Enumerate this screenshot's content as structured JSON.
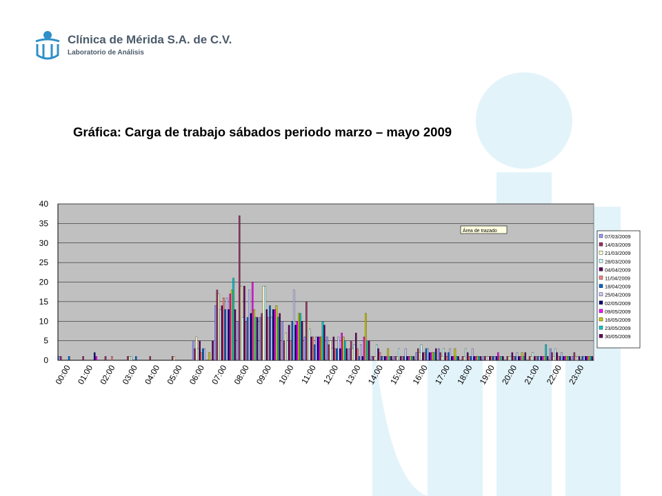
{
  "header": {
    "brand_name": "Clínica de Mérida S.A. de C.V.",
    "brand_subtitle": "Laboratorio de Análisis"
  },
  "slide": {
    "title": "Gráfica: Carga de trabajo sábados periodo marzo – mayo 2009"
  },
  "colors": {
    "brand": "#2f8fc8",
    "watermark": "#e3f3fa",
    "plot_area": "#c0c0c0"
  },
  "chart_data": {
    "type": "bar",
    "title": "",
    "xlabel": "",
    "ylabel": "",
    "ylim": [
      0,
      40
    ],
    "yticks": [
      0,
      5,
      10,
      15,
      20,
      25,
      30,
      35,
      40
    ],
    "grid": true,
    "legend_position": "right",
    "tooltip": "Área de trazado",
    "categories": [
      "00:00",
      "01:00",
      "02:00",
      "03:00",
      "04:00",
      "05:00",
      "06:00",
      "07:00",
      "08:00",
      "09:00",
      "10:00",
      "11:00",
      "12:00",
      "13:00",
      "14:00",
      "15:00",
      "16:00",
      "17:00",
      "18:00",
      "19:00",
      "20:00",
      "21:00",
      "22:00",
      "23:00"
    ],
    "series": [
      {
        "name": "07/03/2009",
        "color": "#9999ff",
        "values": [
          1,
          0,
          0,
          0,
          0,
          0,
          5,
          14,
          10,
          11,
          10,
          6,
          6,
          3,
          1,
          1,
          2,
          3,
          0,
          1,
          0,
          0,
          3,
          1
        ]
      },
      {
        "name": "14/03/2009",
        "color": "#993366",
        "values": [
          1,
          1,
          1,
          1,
          1,
          1,
          3,
          18,
          37,
          12,
          5,
          15,
          4,
          5,
          1,
          1,
          3,
          2,
          1,
          1,
          1,
          1,
          2,
          2
        ]
      },
      {
        "name": "21/03/2009",
        "color": "#ffffcc",
        "values": [
          0,
          0,
          0,
          1,
          0,
          1,
          6,
          17,
          19,
          19,
          7,
          10,
          5,
          3,
          1,
          1,
          2,
          1,
          1,
          1,
          1,
          1,
          1,
          1
        ]
      },
      {
        "name": "28/03/2009",
        "color": "#ccffff",
        "values": [
          0,
          0,
          0,
          1,
          0,
          0,
          3,
          13,
          11,
          19,
          5,
          8,
          3,
          4,
          4,
          3,
          4,
          3,
          3,
          1,
          1,
          2,
          3,
          1
        ]
      },
      {
        "name": "04/04/2009",
        "color": "#660066",
        "values": [
          0,
          0,
          0,
          0,
          0,
          0,
          5,
          14,
          19,
          13,
          9,
          6,
          6,
          7,
          3,
          1,
          2,
          2,
          2,
          1,
          2,
          1,
          2,
          1
        ]
      },
      {
        "name": "11/04/2009",
        "color": "#ff8080",
        "values": [
          0,
          0,
          1,
          0,
          0,
          0,
          2,
          16,
          10,
          11,
          5,
          6,
          3,
          3,
          2,
          1,
          2,
          1,
          1,
          1,
          1,
          1,
          1,
          0
        ]
      },
      {
        "name": "18/04/2009",
        "color": "#0066cc",
        "values": [
          1,
          0,
          0,
          1,
          0,
          0,
          3,
          13,
          11,
          14,
          10,
          4,
          3,
          1,
          1,
          1,
          3,
          2,
          1,
          1,
          1,
          1,
          1,
          1
        ]
      },
      {
        "name": "25/04/2009",
        "color": "#ccccff",
        "values": [
          0,
          0,
          0,
          0,
          0,
          0,
          3,
          16,
          18,
          11,
          18,
          6,
          6,
          4,
          1,
          3,
          3,
          3,
          3,
          1,
          2,
          1,
          2,
          1
        ]
      },
      {
        "name": "02/05/2009",
        "color": "#000080",
        "values": [
          0,
          2,
          0,
          0,
          0,
          0,
          0,
          13,
          12,
          13,
          9,
          6,
          3,
          1,
          1,
          1,
          2,
          1,
          1,
          1,
          1,
          1,
          1,
          1
        ]
      },
      {
        "name": "09/05/2009",
        "color": "#ff00ff",
        "values": [
          0,
          1,
          0,
          0,
          0,
          0,
          0,
          17,
          20,
          13,
          10,
          6,
          7,
          6,
          1,
          1,
          2,
          1,
          1,
          2,
          1,
          1,
          1,
          1
        ]
      },
      {
        "name": "16/05/2009",
        "color": "#cccc00",
        "values": [
          0,
          0,
          0,
          0,
          0,
          0,
          2,
          18,
          13,
          14,
          12,
          6,
          6,
          12,
          3,
          1,
          2,
          3,
          1,
          1,
          2,
          1,
          1,
          1
        ]
      },
      {
        "name": "23/05/2009",
        "color": "#00cccc",
        "values": [
          0,
          0,
          0,
          0,
          0,
          0,
          0,
          21,
          11,
          11,
          12,
          10,
          5,
          5,
          1,
          1,
          2,
          1,
          1,
          1,
          1,
          4,
          1,
          1
        ]
      },
      {
        "name": "30/05/2009",
        "color": "#660066",
        "values": [
          0,
          0,
          0,
          0,
          0,
          0,
          5,
          13,
          11,
          12,
          10,
          9,
          3,
          5,
          1,
          1,
          3,
          1,
          1,
          1,
          2,
          1,
          1,
          1
        ]
      }
    ]
  }
}
